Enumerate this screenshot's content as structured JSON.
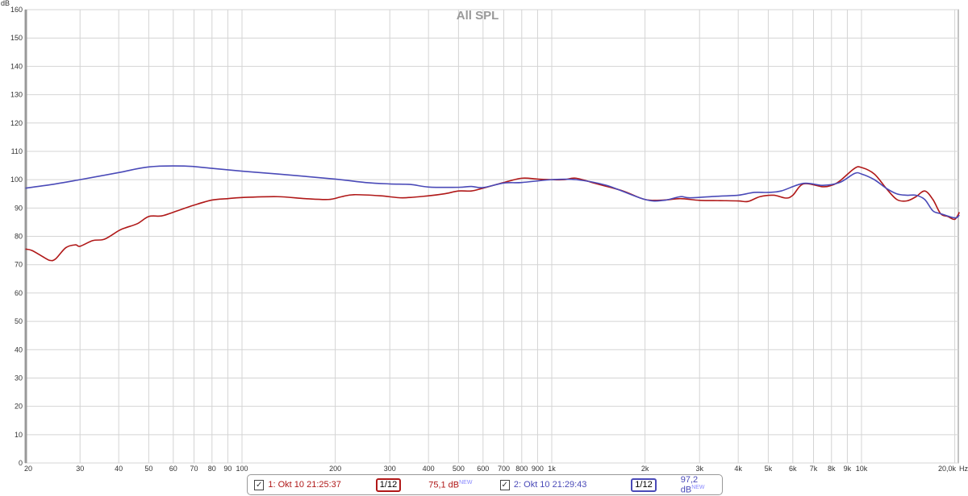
{
  "chart_data": {
    "type": "line",
    "title": "All SPL",
    "ylabel": "dB",
    "xlabel": "Hz",
    "xscale": "log",
    "xlim": [
      20,
      20700
    ],
    "ylim": [
      0,
      160
    ],
    "grid": true,
    "yticks": [
      0,
      10,
      20,
      30,
      40,
      50,
      60,
      70,
      80,
      90,
      100,
      110,
      120,
      130,
      140,
      150,
      160
    ],
    "xticks": [
      {
        "v": 20,
        "l": "20"
      },
      {
        "v": 30,
        "l": "30"
      },
      {
        "v": 40,
        "l": "40"
      },
      {
        "v": 50,
        "l": "50"
      },
      {
        "v": 60,
        "l": "60"
      },
      {
        "v": 70,
        "l": "70"
      },
      {
        "v": 80,
        "l": "80"
      },
      {
        "v": 90,
        "l": "90"
      },
      {
        "v": 100,
        "l": "100"
      },
      {
        "v": 200,
        "l": "200"
      },
      {
        "v": 300,
        "l": "300"
      },
      {
        "v": 400,
        "l": "400"
      },
      {
        "v": 500,
        "l": "500"
      },
      {
        "v": 600,
        "l": "600"
      },
      {
        "v": 700,
        "l": "700"
      },
      {
        "v": 800,
        "l": "800"
      },
      {
        "v": 900,
        "l": "900"
      },
      {
        "v": 1000,
        "l": "1k"
      },
      {
        "v": 2000,
        "l": "2k"
      },
      {
        "v": 3000,
        "l": "3k"
      },
      {
        "v": 4000,
        "l": "4k"
      },
      {
        "v": 5000,
        "l": "5k"
      },
      {
        "v": 6000,
        "l": "6k"
      },
      {
        "v": 7000,
        "l": "7k"
      },
      {
        "v": 8000,
        "l": "8k"
      },
      {
        "v": 9000,
        "l": "9k"
      },
      {
        "v": 10000,
        "l": "10k"
      },
      {
        "v": 20000,
        "l": "20,0k"
      }
    ],
    "series": [
      {
        "name": "1: Okt 10 21:25:37",
        "color": "#b01818",
        "x": [
          20,
          21,
          23,
          24,
          25,
          27,
          29,
          30,
          33,
          36,
          40,
          42,
          46,
          50,
          55,
          60,
          70,
          80,
          90,
          100,
          130,
          160,
          190,
          210,
          230,
          280,
          330,
          400,
          450,
          500,
          550,
          600,
          700,
          800,
          900,
          1000,
          1100,
          1200,
          1400,
          1700,
          2000,
          2300,
          2600,
          3000,
          3500,
          4000,
          4300,
          4700,
          5200,
          5700,
          6000,
          6500,
          7500,
          8000,
          8500,
          9500,
          10000,
          11000,
          12000,
          13000,
          14000,
          15000,
          16000,
          17000,
          18000,
          19000,
          20000,
          20700
        ],
        "y": [
          75.5,
          75,
          72.5,
          71.5,
          72,
          76,
          77,
          76.5,
          78.5,
          79,
          82,
          83,
          84.5,
          87,
          87.2,
          88.5,
          91,
          92.8,
          93.3,
          93.7,
          94,
          93.3,
          93,
          94,
          94.7,
          94.3,
          93.6,
          94.3,
          95,
          96,
          96,
          97,
          99,
          100.5,
          100.2,
          100,
          100,
          100.5,
          98.5,
          96,
          93,
          92.8,
          93.3,
          92.7,
          92.6,
          92.5,
          92.3,
          94,
          94.5,
          93.5,
          94.5,
          98.5,
          97.5,
          98,
          99.5,
          104,
          104.3,
          102,
          97,
          93,
          92.5,
          94,
          96,
          93,
          88,
          87,
          86,
          88.5
        ]
      },
      {
        "name": "2: Okt 10 21:29:43",
        "color": "#4a4ab8",
        "x": [
          20,
          25,
          30,
          40,
          50,
          65,
          80,
          100,
          130,
          200,
          250,
          300,
          350,
          400,
          500,
          550,
          600,
          700,
          800,
          1000,
          1200,
          1500,
          2000,
          2300,
          2600,
          2800,
          3500,
          4000,
          4500,
          5000,
          5500,
          6500,
          7500,
          8500,
          9500,
          10000,
          11000,
          12000,
          13000,
          14000,
          15000,
          16000,
          17000,
          18000,
          20000,
          20700
        ],
        "y": [
          97,
          98.5,
          100,
          102.5,
          104.5,
          104.8,
          104,
          103,
          102,
          100.2,
          99,
          98.5,
          98.3,
          97.4,
          97.3,
          97.6,
          97.2,
          98.8,
          99,
          100,
          100,
          98,
          93,
          92.7,
          94,
          93.6,
          94.2,
          94.5,
          95.5,
          95.5,
          96,
          98.7,
          98,
          99,
          102.2,
          102,
          100,
          97,
          95,
          94.5,
          94.5,
          93,
          89,
          88,
          86.5,
          87.5
        ]
      }
    ]
  },
  "legend": {
    "items": [
      {
        "label": "1: Okt 10 21:25:37",
        "smoothing_num": "1",
        "smoothing_den": "12",
        "level": "75,1 dB",
        "badge": "NEW",
        "checked": true
      },
      {
        "label": "2: Okt 10 21:29:43",
        "smoothing_num": "1",
        "smoothing_den": "12",
        "level": "97,2 dB",
        "badge": "NEW",
        "checked": true
      }
    ]
  }
}
